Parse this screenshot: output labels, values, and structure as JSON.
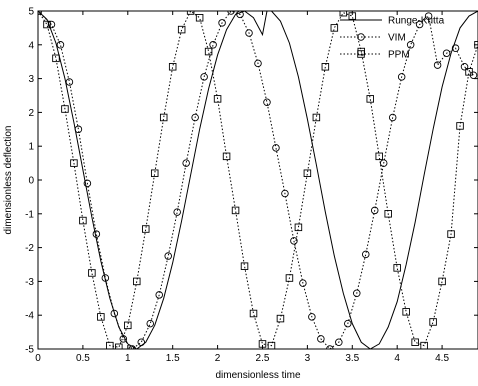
{
  "chart_data": {
    "type": "line",
    "title": "",
    "xlabel": "dimensionless time",
    "ylabel": "dimensionless deflection",
    "xlim": [
      0,
      4.9
    ],
    "ylim": [
      -5,
      5
    ],
    "x_ticks": [
      0,
      0.5,
      1,
      1.5,
      2,
      2.5,
      3,
      3.5,
      4,
      4.5
    ],
    "x_tick_labels": [
      "0",
      "0.5",
      "1",
      "1.5",
      "2",
      "2.5",
      "3",
      "3.5",
      "4",
      "4.5"
    ],
    "y_ticks": [
      -5,
      -4,
      -3,
      -2,
      -1,
      0,
      1,
      2,
      3,
      4,
      5
    ],
    "y_tick_labels": [
      "-5",
      "-4",
      "-3",
      "-2",
      "-1",
      "0",
      "1",
      "2",
      "3",
      "4",
      "5"
    ],
    "grid": false,
    "legend_position": "top-right",
    "series": [
      {
        "name": "Runge-Kutta",
        "style": "solid",
        "marker": "none",
        "color": "#000000",
        "x": [
          0,
          0.1,
          0.2,
          0.3,
          0.4,
          0.5,
          0.6,
          0.7,
          0.8,
          0.9,
          1.0,
          1.1,
          1.2,
          1.3,
          1.4,
          1.5,
          1.6,
          1.7,
          1.8,
          1.9,
          2.0,
          2.1,
          2.2,
          2.3,
          2.4,
          2.5,
          2.55,
          2.6,
          2.7,
          2.8,
          2.9,
          3.0,
          3.1,
          3.2,
          3.3,
          3.4,
          3.5,
          3.6,
          3.7,
          3.8,
          3.9,
          4.0,
          4.1,
          4.2,
          4.3,
          4.4,
          4.5,
          4.6,
          4.7,
          4.8,
          4.9
        ],
        "y": [
          5.0,
          4.75,
          4.05,
          3.0,
          1.7,
          0.3,
          -1.1,
          -2.4,
          -3.5,
          -4.35,
          -4.85,
          -5.0,
          -4.8,
          -4.3,
          -3.5,
          -2.45,
          -1.2,
          0.15,
          1.5,
          2.7,
          3.7,
          4.45,
          4.9,
          5.0,
          4.8,
          4.3,
          5.0,
          5.0,
          4.7,
          4.05,
          3.05,
          1.8,
          0.45,
          -0.95,
          -2.25,
          -3.35,
          -4.25,
          -4.8,
          -5.0,
          -4.85,
          -4.35,
          -3.6,
          -2.5,
          -1.25,
          0.15,
          1.5,
          2.75,
          3.75,
          4.5,
          4.85,
          5.0
        ]
      },
      {
        "name": "VIM",
        "style": "dotted",
        "marker": "circle",
        "color": "#000000",
        "x": [
          0,
          0.15,
          0.25,
          0.35,
          0.45,
          0.55,
          0.65,
          0.75,
          0.85,
          0.95,
          1.05,
          1.15,
          1.25,
          1.35,
          1.45,
          1.55,
          1.65,
          1.75,
          1.85,
          1.95,
          2.05,
          2.15,
          2.25,
          2.35,
          2.45,
          2.55,
          2.65,
          2.75,
          2.85,
          2.95,
          3.05,
          3.15,
          3.25,
          3.35,
          3.45,
          3.55,
          3.65,
          3.75,
          3.85,
          3.95,
          4.05,
          4.15,
          4.25,
          4.35,
          4.45,
          4.55,
          4.65,
          4.75,
          4.85
        ],
        "y": [
          5.0,
          4.6,
          4.0,
          2.9,
          1.5,
          -0.1,
          -1.6,
          -2.9,
          -3.95,
          -4.7,
          -5.0,
          -4.8,
          -4.25,
          -3.4,
          -2.25,
          -0.95,
          0.5,
          1.85,
          3.05,
          4.0,
          4.65,
          5.0,
          4.9,
          4.35,
          3.45,
          2.3,
          0.95,
          -0.4,
          -1.8,
          -3.05,
          -4.05,
          -4.7,
          -5.0,
          -4.8,
          -4.25,
          -3.35,
          -2.2,
          -0.9,
          0.5,
          1.85,
          3.05,
          4.0,
          4.6,
          4.85,
          3.4,
          3.75,
          3.9,
          3.35,
          3.1
        ]
      },
      {
        "name": "PPM",
        "style": "dotted",
        "marker": "square",
        "color": "#000000",
        "x": [
          0,
          0.1,
          0.2,
          0.3,
          0.4,
          0.5,
          0.6,
          0.7,
          0.8,
          0.9,
          1.0,
          1.1,
          1.2,
          1.3,
          1.4,
          1.5,
          1.6,
          1.7,
          1.8,
          1.9,
          2.0,
          2.1,
          2.2,
          2.3,
          2.4,
          2.5,
          2.6,
          2.7,
          2.8,
          2.9,
          3.0,
          3.1,
          3.2,
          3.3,
          3.4,
          3.5,
          3.6,
          3.7,
          3.8,
          3.9,
          4.0,
          4.1,
          4.2,
          4.3,
          4.4,
          4.5,
          4.6,
          4.7,
          4.8,
          4.9
        ],
        "y": [
          5.0,
          4.6,
          3.6,
          2.1,
          0.5,
          -1.2,
          -2.75,
          -4.05,
          -4.9,
          -4.95,
          -4.3,
          -3.0,
          -1.45,
          0.2,
          1.85,
          3.35,
          4.45,
          5.0,
          4.8,
          3.8,
          2.4,
          0.7,
          -0.9,
          -2.55,
          -3.95,
          -4.85,
          -4.9,
          -4.1,
          -2.9,
          -1.4,
          0.2,
          1.85,
          3.35,
          4.5,
          4.95,
          4.85,
          3.8,
          2.4,
          0.7,
          -1.0,
          -2.6,
          -3.9,
          -4.8,
          -4.9,
          -4.2,
          -3.0,
          -1.6,
          1.6,
          3.2,
          4.0
        ]
      }
    ]
  }
}
